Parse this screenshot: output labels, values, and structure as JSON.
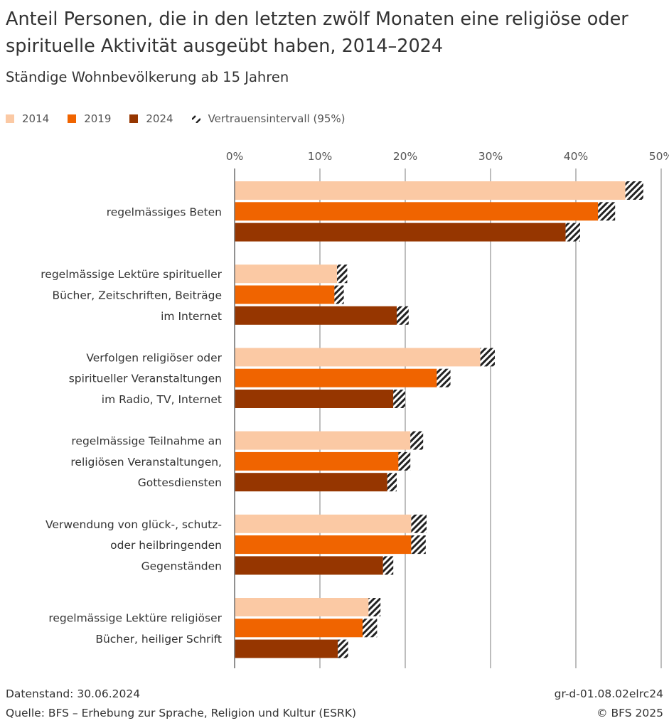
{
  "header": {
    "title": "Anteil Personen, die in den letzten zwölf Monaten eine religiöse oder spirituelle Aktivität ausgeübt haben, 2014–2024",
    "subtitle": "Ständige Wohnbevölkerung ab 15 Jahren"
  },
  "legend": {
    "items": [
      {
        "label": "2014",
        "color": "#fbc9a4"
      },
      {
        "label": "2019",
        "color": "#f06400"
      },
      {
        "label": "2024",
        "color": "#963600"
      },
      {
        "label": "Vertrauensintervall (95%)",
        "icon": "hatch-pattern-icon"
      }
    ]
  },
  "chart_data": {
    "type": "bar",
    "orientation": "horizontal",
    "title": "Anteil Personen, die in den letzten zwölf Monaten eine religiöse oder spirituelle Aktivität ausgeübt haben, 2014–2024",
    "xlabel": "",
    "ylabel": "",
    "xlim": [
      0,
      50
    ],
    "ticks": [
      0,
      10,
      20,
      30,
      40,
      50
    ],
    "tick_labels": [
      "0%",
      "10%",
      "20%",
      "30%",
      "40%",
      "50%"
    ],
    "grid": true,
    "categories": [
      [
        "regelmässiges Beten"
      ],
      [
        "regelmässige Lektüre spiritueller",
        "Bücher, Zeitschriften, Beiträge",
        "im Internet"
      ],
      [
        "Verfolgen religiöser oder",
        "spiritueller Veranstaltungen",
        "im Radio, TV, Internet"
      ],
      [
        "regelmässige Teilnahme an",
        "religiösen Veranstaltungen,",
        "Gottesdiensten"
      ],
      [
        "Verwendung von glück-, schutz-",
        "oder heilbringenden",
        "Gegenständen"
      ],
      [
        "regelmässige Lektüre religiöser",
        "Bücher, heiliger Schrift"
      ]
    ],
    "series": [
      {
        "name": "2014",
        "color": "#fbc9a4",
        "values": [
          47.0,
          12.5,
          29.6,
          21.4,
          21.6,
          16.4
        ],
        "ci_low": [
          45.8,
          12.0,
          28.8,
          20.6,
          20.7,
          15.7
        ],
        "ci_high": [
          47.9,
          13.2,
          30.5,
          22.1,
          22.5,
          17.1
        ]
      },
      {
        "name": "2019",
        "color": "#f06400",
        "values": [
          43.4,
          12.2,
          24.5,
          19.9,
          21.5,
          15.8
        ],
        "ci_low": [
          42.6,
          11.7,
          23.7,
          19.2,
          20.7,
          15.0
        ],
        "ci_high": [
          44.6,
          12.8,
          25.3,
          20.6,
          22.4,
          16.7
        ]
      },
      {
        "name": "2024",
        "color": "#963600",
        "values": [
          39.7,
          19.6,
          19.2,
          18.4,
          17.9,
          12.6
        ],
        "ci_low": [
          38.8,
          19.0,
          18.6,
          17.9,
          17.4,
          12.1
        ],
        "ci_high": [
          40.5,
          20.4,
          20.0,
          19.0,
          18.6,
          13.3
        ]
      }
    ]
  },
  "footer": {
    "data_status": "Datenstand: 30.06.2024",
    "source": "Quelle: BFS – Erhebung zur Sprache, Religion und Kultur (ESRK)",
    "code": "gr-d-01.08.02elrc24",
    "copyright": "© BFS 2025"
  }
}
